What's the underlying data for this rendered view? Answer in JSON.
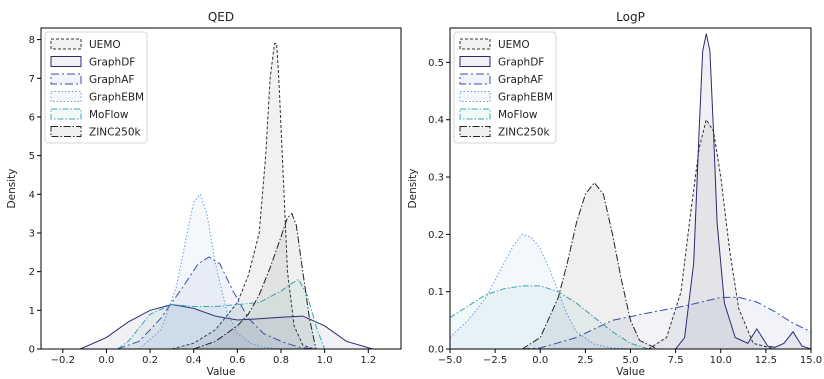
{
  "chart_data": [
    {
      "type": "area",
      "title": "QED",
      "xlabel": "Value",
      "ylabel": "Density",
      "xlim": [
        -0.3,
        1.35
      ],
      "ylim": [
        0,
        8.3
      ],
      "xticks": [
        -0.2,
        0.0,
        0.2,
        0.4,
        0.6,
        0.8,
        1.0,
        1.2
      ],
      "xtick_labels": [
        "−0.2",
        "0.0",
        "0.2",
        "0.4",
        "0.6",
        "0.8",
        "1.0",
        "1.2"
      ],
      "yticks": [
        0,
        1,
        2,
        3,
        4,
        5,
        6,
        7,
        8
      ],
      "ytick_labels": [
        "0",
        "1",
        "2",
        "3",
        "4",
        "5",
        "6",
        "7",
        "8"
      ],
      "grid": false,
      "legend": "top-left",
      "series": [
        {
          "name": "UEMO",
          "color": "#333333",
          "dash": "3,2",
          "x": [
            0.3,
            0.4,
            0.5,
            0.6,
            0.65,
            0.7,
            0.73,
            0.75,
            0.77,
            0.78,
            0.79,
            0.81,
            0.83,
            0.86,
            0.9,
            0.95
          ],
          "y": [
            0,
            0.15,
            0.5,
            1.2,
            1.9,
            3.0,
            5.0,
            7.0,
            7.9,
            7.9,
            7.0,
            4.5,
            2.0,
            0.6,
            0.1,
            0
          ]
        },
        {
          "name": "GraphDF",
          "color": "#2d2a6e",
          "dash": "",
          "x": [
            -0.12,
            0.0,
            0.1,
            0.2,
            0.3,
            0.4,
            0.5,
            0.6,
            0.7,
            0.8,
            0.9,
            1.0,
            1.1,
            1.22
          ],
          "y": [
            0,
            0.3,
            0.7,
            1.0,
            1.15,
            1.05,
            0.85,
            0.75,
            0.78,
            0.82,
            0.85,
            0.6,
            0.2,
            0
          ]
        },
        {
          "name": "GraphAF",
          "color": "#3b4fa8",
          "dash": "8,3,2,3",
          "x": [
            0.05,
            0.15,
            0.25,
            0.35,
            0.42,
            0.47,
            0.52,
            0.58,
            0.65,
            0.72,
            0.8,
            0.88,
            0.95
          ],
          "y": [
            0,
            0.2,
            0.8,
            1.6,
            2.2,
            2.38,
            2.2,
            1.5,
            0.8,
            0.4,
            0.2,
            0.05,
            0
          ]
        },
        {
          "name": "GraphEBM",
          "color": "#6a9fd8",
          "dash": "1.5,2",
          "x": [
            0.15,
            0.25,
            0.32,
            0.37,
            0.4,
            0.43,
            0.46,
            0.5,
            0.55,
            0.6,
            0.66,
            0.72,
            0.8
          ],
          "y": [
            0,
            0.5,
            1.6,
            3.0,
            3.8,
            4.0,
            3.5,
            2.2,
            1.0,
            0.4,
            0.15,
            0.05,
            0
          ]
        },
        {
          "name": "MoFlow",
          "color": "#3aa8b0",
          "dash": "6,2,1.5,2",
          "x": [
            0.05,
            0.1,
            0.2,
            0.3,
            0.4,
            0.5,
            0.6,
            0.7,
            0.8,
            0.85,
            0.88,
            0.92,
            0.96,
            1.0
          ],
          "y": [
            0,
            0.2,
            0.9,
            1.15,
            1.1,
            1.1,
            1.15,
            1.2,
            1.5,
            1.7,
            1.8,
            1.4,
            0.6,
            0
          ]
        },
        {
          "name": "ZINC250k",
          "color": "#222222",
          "dash": "7,2,1.5,2",
          "x": [
            0.4,
            0.5,
            0.6,
            0.65,
            0.7,
            0.75,
            0.8,
            0.83,
            0.85,
            0.87,
            0.9,
            0.93,
            0.96
          ],
          "y": [
            0,
            0.2,
            0.6,
            0.9,
            1.4,
            2.1,
            2.9,
            3.4,
            3.5,
            3.2,
            2.0,
            0.8,
            0
          ]
        }
      ]
    },
    {
      "type": "area",
      "title": "LogP",
      "xlabel": "Value",
      "ylabel": "Density",
      "xlim": [
        -5.0,
        15.0
      ],
      "ylim": [
        0,
        0.56
      ],
      "xticks": [
        -5.0,
        -2.5,
        0.0,
        2.5,
        5.0,
        7.5,
        10.0,
        12.5,
        15.0
      ],
      "xtick_labels": [
        "−5.0",
        "−2.5",
        "0.0",
        "2.5",
        "5.0",
        "7.5",
        "10.0",
        "12.5",
        "15.0"
      ],
      "yticks": [
        0,
        0.1,
        0.2,
        0.3,
        0.4,
        0.5
      ],
      "ytick_labels": [
        "0.0",
        "0.1",
        "0.2",
        "0.3",
        "0.4",
        "0.5"
      ],
      "grid": false,
      "legend": "top-left",
      "series": [
        {
          "name": "UEMO",
          "color": "#333333",
          "dash": "3,2",
          "x": [
            6.0,
            7.0,
            7.8,
            8.3,
            8.8,
            9.2,
            9.6,
            10.0,
            10.5,
            11.0,
            11.8,
            13.0
          ],
          "y": [
            0,
            0.02,
            0.1,
            0.23,
            0.35,
            0.4,
            0.38,
            0.3,
            0.17,
            0.07,
            0.01,
            0
          ]
        },
        {
          "name": "GraphDF",
          "color": "#2d2a6e",
          "dash": "",
          "x": [
            7.5,
            8.0,
            8.5,
            8.8,
            9.0,
            9.2,
            9.4,
            9.6,
            9.8,
            10.2,
            10.8,
            11.5,
            12.0,
            12.3,
            12.6,
            13.0,
            13.5,
            14.0,
            14.5,
            15.0
          ],
          "y": [
            0,
            0.02,
            0.15,
            0.38,
            0.52,
            0.55,
            0.52,
            0.38,
            0.22,
            0.08,
            0.02,
            0.01,
            0.035,
            0.02,
            0.005,
            0.003,
            0.01,
            0.03,
            0.005,
            0
          ]
        },
        {
          "name": "GraphAF",
          "color": "#3b4fa8",
          "dash": "8,3,2,3",
          "x": [
            -1.0,
            0.0,
            2.0,
            4.0,
            6.0,
            8.0,
            10.0,
            11.0,
            12.0,
            13.0,
            14.0,
            15.0
          ],
          "y": [
            0,
            0.002,
            0.02,
            0.05,
            0.063,
            0.075,
            0.09,
            0.09,
            0.082,
            0.065,
            0.045,
            0.03
          ]
        },
        {
          "name": "GraphEBM",
          "color": "#6a9fd8",
          "dash": "1.5,2",
          "x": [
            -5.0,
            -4.0,
            -3.0,
            -2.0,
            -1.5,
            -1.0,
            -0.5,
            0.0,
            0.5,
            1.0,
            1.5,
            2.0,
            3.0,
            4.0,
            5.0
          ],
          "y": [
            0.02,
            0.05,
            0.09,
            0.15,
            0.18,
            0.2,
            0.195,
            0.175,
            0.14,
            0.1,
            0.06,
            0.03,
            0.008,
            0.002,
            0
          ]
        },
        {
          "name": "MoFlow",
          "color": "#3aa8b0",
          "dash": "6,2,1.5,2",
          "x": [
            -5.0,
            -4.0,
            -3.0,
            -2.0,
            -1.0,
            0.0,
            1.0,
            2.0,
            3.0,
            4.0,
            5.0,
            6.0
          ],
          "y": [
            0.055,
            0.075,
            0.095,
            0.105,
            0.11,
            0.11,
            0.1,
            0.08,
            0.055,
            0.03,
            0.01,
            0
          ]
        },
        {
          "name": "ZINC250k",
          "color": "#222222",
          "dash": "7,2,1.5,2",
          "x": [
            -1.0,
            0.0,
            1.0,
            1.5,
            2.0,
            2.5,
            3.0,
            3.5,
            4.0,
            4.5,
            5.0,
            5.5,
            6.5
          ],
          "y": [
            0,
            0.02,
            0.09,
            0.15,
            0.22,
            0.27,
            0.29,
            0.27,
            0.2,
            0.12,
            0.05,
            0.015,
            0
          ]
        }
      ]
    }
  ]
}
